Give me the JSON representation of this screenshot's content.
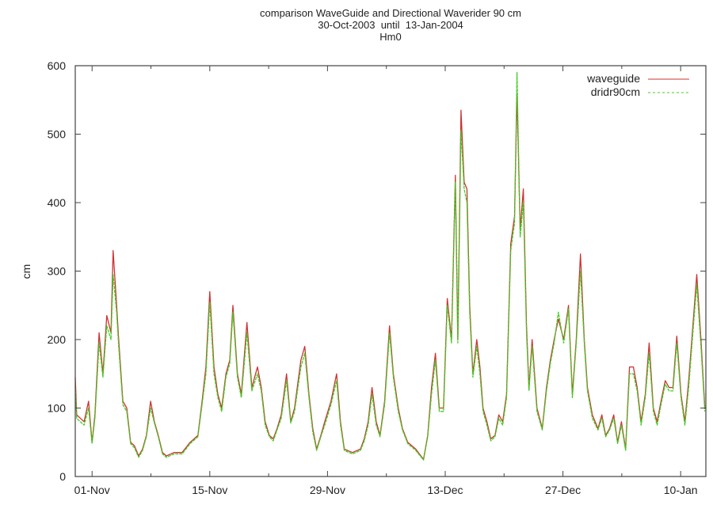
{
  "chart_data": {
    "type": "line",
    "title": [
      "comparison WaveGuide and Directional Waverider 90 cm",
      "30-Oct-2003  until  13-Jan-2004",
      "Hm0"
    ],
    "xlabel": "",
    "ylabel": "cm",
    "xlim": [
      "2003-10-30 00:00",
      "2004-01-13 00:00"
    ],
    "ylim": [
      0,
      600
    ],
    "yticks": [
      0,
      100,
      200,
      300,
      400,
      500,
      600
    ],
    "xticks": [
      {
        "date": "2003-11-01 00:00",
        "label": "01-Nov"
      },
      {
        "date": "2003-11-15 00:00",
        "label": "15-Nov"
      },
      {
        "date": "2003-11-29 00:00",
        "label": "29-Nov"
      },
      {
        "date": "2003-12-13 00:00",
        "label": "13-Dec"
      },
      {
        "date": "2003-12-27 00:00",
        "label": "27-Dec"
      },
      {
        "date": "2004-01-10 00:00",
        "label": "10-Jan"
      }
    ],
    "xminor_ticks": [
      "2003-11-08 00:00",
      "2003-11-22 00:00",
      "2003-12-06 00:00",
      "2003-12-20 00:00",
      "2004-01-03 00:00"
    ],
    "grid": false,
    "legend_position": "top-right",
    "x": [
      "2003-10-30 00:00",
      "2003-10-30 04:00",
      "2003-10-31 01:00",
      "2003-10-31 14:00",
      "2003-11-01 00:00",
      "2003-11-01 08:00",
      "2003-11-01 20:00",
      "2003-11-02 07:00",
      "2003-11-02 18:00",
      "2003-11-03 06:00",
      "2003-11-03 12:00",
      "2003-11-03 22:00",
      "2003-11-04 04:00",
      "2003-11-04 16:00",
      "2003-11-05 03:00",
      "2003-11-05 14:00",
      "2003-11-06 01:00",
      "2003-11-06 13:00",
      "2003-11-07 00:00",
      "2003-11-07 11:00",
      "2003-11-07 23:00",
      "2003-11-08 10:00",
      "2003-11-08 21:00",
      "2003-11-09 09:00",
      "2003-11-09 20:00",
      "2003-11-10 18:00",
      "2003-11-11 17:00",
      "2003-11-12 16:00",
      "2003-11-13 14:00",
      "2003-11-14 02:00",
      "2003-11-14 13:00",
      "2003-11-15 00:00",
      "2003-11-15 12:00",
      "2003-11-15 23:00",
      "2003-11-16 10:00",
      "2003-11-16 22:00",
      "2003-11-17 09:00",
      "2003-11-17 18:00",
      "2003-11-18 07:00",
      "2003-11-18 18:00",
      "2003-11-19 10:00",
      "2003-11-20 00:00",
      "2003-11-20 16:00",
      "2003-11-21 03:00",
      "2003-11-21 14:00",
      "2003-11-22 02:00",
      "2003-11-22 13:00",
      "2003-11-23 00:00",
      "2003-11-23 12:00",
      "2003-11-24 03:00",
      "2003-11-24 15:00",
      "2003-11-25 02:00",
      "2003-11-25 20:00",
      "2003-11-26 07:00",
      "2003-11-26 19:00",
      "2003-11-27 06:00",
      "2003-11-27 17:00",
      "2003-11-28 05:00",
      "2003-11-28 16:00",
      "2003-11-29 10:00",
      "2003-11-30 02:00",
      "2003-11-30 13:00",
      "2003-12-01 00:00",
      "2003-12-01 23:00",
      "2003-12-02 22:00",
      "2003-12-03 09:00",
      "2003-12-03 20:00",
      "2003-12-04 07:00",
      "2003-12-04 19:00",
      "2003-12-05 06:00",
      "2003-12-05 19:00",
      "2003-12-06 09:00",
      "2003-12-06 20:00",
      "2003-12-07 10:00",
      "2003-12-07 22:00",
      "2003-12-08 13:00",
      "2003-12-09 12:00",
      "2003-12-10 10:00",
      "2003-12-10 22:00",
      "2003-12-11 09:00",
      "2003-12-11 20:00",
      "2003-12-12 07:00",
      "2003-12-12 19:00",
      "2003-12-13 06:00",
      "2003-12-13 18:00",
      "2003-12-14 05:00",
      "2003-12-14 12:00",
      "2003-12-14 21:00",
      "2003-12-15 06:00",
      "2003-12-15 14:00",
      "2003-12-15 22:00",
      "2003-12-16 07:00",
      "2003-12-16 18:00",
      "2003-12-17 03:00",
      "2003-12-17 12:00",
      "2003-12-17 23:00",
      "2003-12-18 10:00",
      "2003-12-18 22:00",
      "2003-12-19 09:00",
      "2003-12-19 20:00",
      "2003-12-20 07:00",
      "2003-12-20 19:00",
      "2003-12-21 06:00",
      "2003-12-21 13:00",
      "2003-12-21 22:00",
      "2003-12-22 07:00",
      "2003-12-22 16:00",
      "2003-12-22 23:00",
      "2003-12-23 08:00",
      "2003-12-23 22:00",
      "2003-12-24 13:00",
      "2003-12-25 01:00",
      "2003-12-25 12:00",
      "2003-12-25 23:00",
      "2003-12-26 11:00",
      "2003-12-27 02:00",
      "2003-12-27 16:00",
      "2003-12-28 03:00",
      "2003-12-28 14:00",
      "2003-12-29 02:00",
      "2003-12-29 13:00",
      "2003-12-29 22:00",
      "2003-12-30 12:00",
      "2003-12-31 04:00",
      "2003-12-31 15:00",
      "2004-01-01 02:00",
      "2004-01-01 13:00",
      "2004-01-02 01:00",
      "2004-01-02 12:00",
      "2004-01-02 23:00",
      "2004-01-03 11:00",
      "2004-01-03 22:00",
      "2004-01-04 09:00",
      "2004-01-04 20:00",
      "2004-01-05 07:00",
      "2004-01-05 19:00",
      "2004-01-06 06:00",
      "2004-01-06 18:00",
      "2004-01-07 05:00",
      "2004-01-07 16:00",
      "2004-01-08 04:00",
      "2004-01-08 15:00",
      "2004-01-09 02:00",
      "2004-01-09 13:00",
      "2004-01-10 01:00",
      "2004-01-10 12:00",
      "2004-01-10 23:00",
      "2004-01-11 11:00",
      "2004-01-11 22:00",
      "2004-01-12 10:00",
      "2004-01-12 21:00"
    ],
    "series": [
      {
        "name": "waveguide",
        "color": "#cc3333",
        "style": "solid",
        "values": [
          145,
          90,
          80,
          110,
          50,
          90,
          210,
          150,
          235,
          210,
          330,
          250,
          200,
          110,
          100,
          50,
          45,
          30,
          40,
          60,
          110,
          80,
          60,
          35,
          30,
          35,
          35,
          50,
          60,
          110,
          160,
          270,
          160,
          120,
          100,
          150,
          170,
          250,
          150,
          120,
          225,
          130,
          160,
          130,
          80,
          60,
          55,
          70,
          90,
          150,
          80,
          100,
          170,
          190,
          120,
          70,
          40,
          60,
          80,
          110,
          150,
          80,
          40,
          35,
          40,
          55,
          80,
          130,
          80,
          60,
          110,
          220,
          150,
          100,
          70,
          50,
          40,
          25,
          60,
          130,
          180,
          100,
          100,
          260,
          200,
          440,
          200,
          535,
          430,
          420,
          250,
          150,
          200,
          160,
          100,
          80,
          55,
          60,
          90,
          80,
          120,
          340,
          380,
          560,
          360,
          420,
          220,
          130,
          200,
          100,
          70,
          130,
          170,
          200,
          230,
          200,
          250,
          120,
          200,
          325,
          200,
          130,
          90,
          70,
          90,
          60,
          70,
          90,
          50,
          80,
          40,
          160,
          160,
          130,
          80,
          120,
          195,
          100,
          80,
          110,
          140,
          130,
          130,
          205,
          120,
          80,
          140,
          220,
          295,
          200,
          100
        ]
      },
      {
        "name": "dridr90cm",
        "color": "#44cc22",
        "style": "dashed",
        "values": [
          130,
          85,
          75,
          100,
          48,
          85,
          195,
          145,
          220,
          200,
          295,
          240,
          190,
          105,
          95,
          48,
          42,
          28,
          38,
          58,
          100,
          78,
          58,
          33,
          28,
          33,
          33,
          48,
          58,
          105,
          150,
          255,
          150,
          115,
          95,
          145,
          165,
          240,
          145,
          115,
          210,
          125,
          150,
          125,
          75,
          58,
          52,
          68,
          85,
          140,
          78,
          95,
          160,
          180,
          115,
          65,
          38,
          58,
          75,
          105,
          140,
          75,
          38,
          33,
          38,
          52,
          75,
          120,
          75,
          58,
          105,
          210,
          145,
          95,
          68,
          48,
          38,
          24,
          58,
          120,
          170,
          95,
          95,
          250,
          195,
          430,
          195,
          505,
          420,
          400,
          240,
          145,
          190,
          150,
          95,
          75,
          52,
          58,
          85,
          75,
          115,
          330,
          370,
          590,
          350,
          400,
          210,
          125,
          190,
          95,
          68,
          125,
          165,
          195,
          240,
          195,
          245,
          115,
          195,
          300,
          195,
          125,
          85,
          68,
          85,
          58,
          68,
          85,
          48,
          75,
          38,
          150,
          150,
          125,
          75,
          115,
          180,
          95,
          75,
          105,
          135,
          125,
          125,
          195,
          115,
          75,
          130,
          210,
          280,
          190,
          95
        ]
      }
    ]
  }
}
